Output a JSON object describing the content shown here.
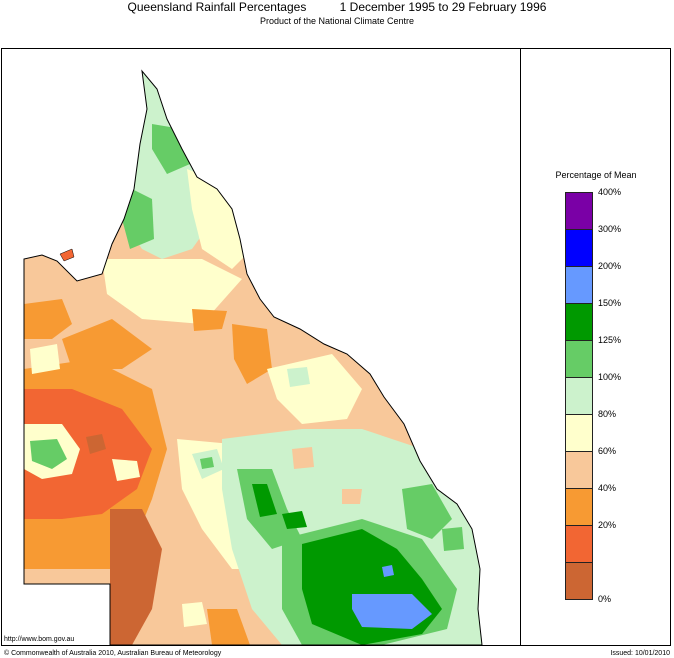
{
  "header": {
    "title": "Queensland Rainfall Percentages          1 December 1995 to 29 February 1996",
    "subtitle": "Product of the National Climate Centre"
  },
  "legend": {
    "title": "Percentage of Mean",
    "bands": [
      {
        "label": "400%",
        "color": "#7a00a6"
      },
      {
        "label": "300%",
        "color": "#0000ff"
      },
      {
        "label": "200%",
        "color": "#6699ff"
      },
      {
        "label": "150%",
        "color": "#009900"
      },
      {
        "label": "125%",
        "color": "#66cc66"
      },
      {
        "label": "100%",
        "color": "#ccf2cc"
      },
      {
        "label": "80%",
        "color": "#ffffcc"
      },
      {
        "label": "60%",
        "color": "#f8c89a"
      },
      {
        "label": "40%",
        "color": "#f79a33"
      },
      {
        "label": "20%",
        "color": "#f26633"
      },
      {
        "label": "0%",
        "color": "#cc6633"
      }
    ]
  },
  "footer": {
    "url": "http://www.bom.gov.au",
    "copyright": "© Commonwealth of Australia 2010, Australian Bureau of Meteorology",
    "issued": "Issued: 10/01/2010"
  }
}
